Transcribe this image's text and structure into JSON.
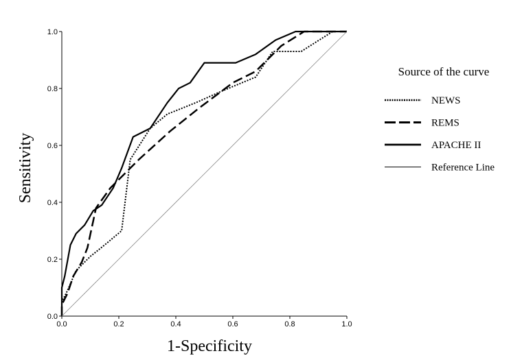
{
  "chart_data": {
    "type": "line",
    "xlabel": "1-Specificity",
    "ylabel": "Sensitivity",
    "xlim": [
      0,
      1
    ],
    "ylim": [
      0,
      1
    ],
    "x_ticks": [
      "0.0",
      "0.2",
      "0.4",
      "0.6",
      "0.8",
      "1.0"
    ],
    "y_ticks": [
      "0.0",
      "0.2",
      "0.4",
      "0.6",
      "0.8",
      "1.0"
    ],
    "grid": false,
    "legend": {
      "title": "Source of the curve",
      "placement": "right"
    },
    "series": [
      {
        "name": "NEWS",
        "style": "dotted",
        "stroke_width": 2,
        "color": "#000000",
        "points": [
          [
            0,
            0
          ],
          [
            0,
            0.05
          ],
          [
            0.02,
            0.09
          ],
          [
            0.05,
            0.16
          ],
          [
            0.1,
            0.21
          ],
          [
            0.15,
            0.25
          ],
          [
            0.21,
            0.3
          ],
          [
            0.24,
            0.55
          ],
          [
            0.31,
            0.66
          ],
          [
            0.37,
            0.71
          ],
          [
            0.47,
            0.75
          ],
          [
            0.56,
            0.79
          ],
          [
            0.68,
            0.84
          ],
          [
            0.74,
            0.93
          ],
          [
            0.84,
            0.93
          ],
          [
            0.95,
            1.0
          ],
          [
            1.0,
            1.0
          ]
        ]
      },
      {
        "name": "REMS",
        "style": "dashed",
        "stroke_width": 2.5,
        "color": "#000000",
        "points": [
          [
            0,
            0
          ],
          [
            0,
            0.04
          ],
          [
            0.02,
            0.08
          ],
          [
            0.04,
            0.14
          ],
          [
            0.07,
            0.19
          ],
          [
            0.09,
            0.24
          ],
          [
            0.12,
            0.38
          ],
          [
            0.17,
            0.45
          ],
          [
            0.27,
            0.55
          ],
          [
            0.38,
            0.65
          ],
          [
            0.48,
            0.73
          ],
          [
            0.6,
            0.82
          ],
          [
            0.68,
            0.86
          ],
          [
            0.77,
            0.95
          ],
          [
            0.85,
            1.0
          ],
          [
            1.0,
            1.0
          ]
        ]
      },
      {
        "name": "APACHE II",
        "style": "solid",
        "stroke_width": 2.2,
        "color": "#000000",
        "points": [
          [
            0,
            0
          ],
          [
            0,
            0.1
          ],
          [
            0.01,
            0.14
          ],
          [
            0.03,
            0.25
          ],
          [
            0.05,
            0.29
          ],
          [
            0.08,
            0.32
          ],
          [
            0.11,
            0.37
          ],
          [
            0.14,
            0.39
          ],
          [
            0.18,
            0.45
          ],
          [
            0.21,
            0.52
          ],
          [
            0.25,
            0.63
          ],
          [
            0.31,
            0.66
          ],
          [
            0.37,
            0.75
          ],
          [
            0.41,
            0.8
          ],
          [
            0.45,
            0.82
          ],
          [
            0.5,
            0.89
          ],
          [
            0.61,
            0.89
          ],
          [
            0.68,
            0.92
          ],
          [
            0.75,
            0.97
          ],
          [
            0.82,
            1.0
          ],
          [
            1.0,
            1.0
          ]
        ]
      },
      {
        "name": "Reference Line",
        "style": "thin",
        "stroke_width": 0.8,
        "color": "#888888",
        "points": [
          [
            0,
            0
          ],
          [
            1,
            1
          ]
        ]
      }
    ]
  }
}
